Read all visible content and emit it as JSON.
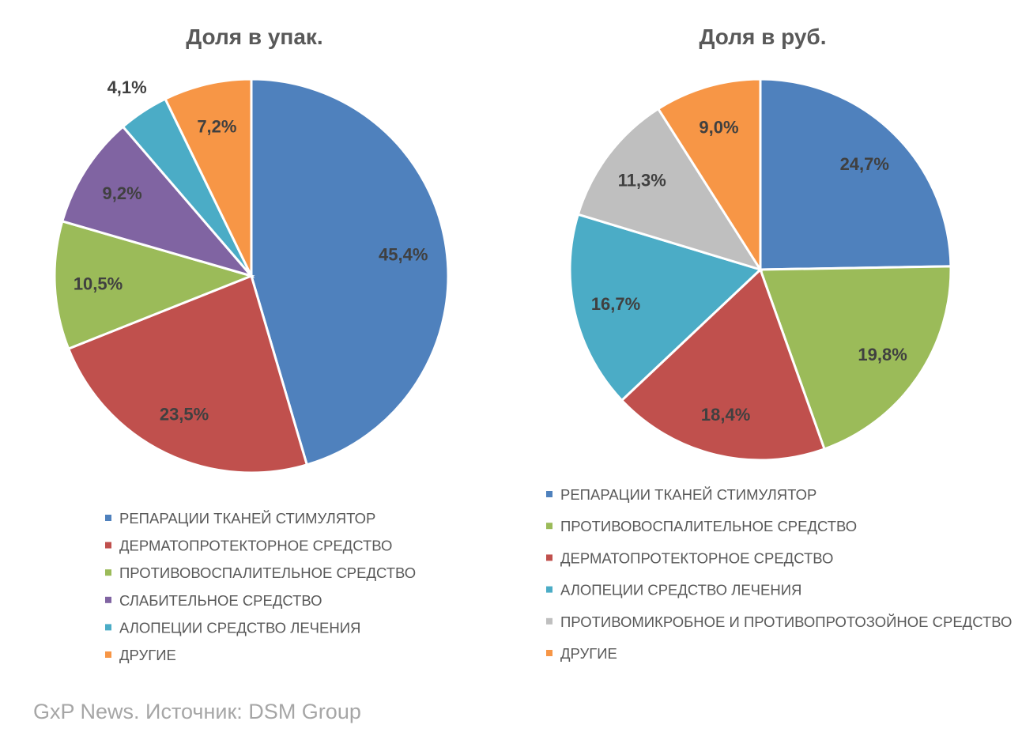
{
  "chart_data": [
    {
      "type": "pie",
      "title": "Доля в упак.",
      "categories": [
        "РЕПАРАЦИИ ТКАНЕЙ СТИМУЛЯТОР",
        "ДЕРМАТОПРОТЕКТОРНОЕ СРЕДСТВО",
        "ПРОТИВОВОСПАЛИТЕЛЬНОЕ СРЕДСТВО",
        "СЛАБИТЕЛЬНОЕ СРЕДСТВО",
        "АЛОПЕЦИИ СРЕДСТВО ЛЕЧЕНИЯ",
        "ДРУГИЕ"
      ],
      "values": [
        45.4,
        23.5,
        10.5,
        9.2,
        4.1,
        7.2
      ],
      "labels": [
        "45,4%",
        "23,5%",
        "10,5%",
        "9,2%",
        "4,1%",
        "7,2%"
      ],
      "colors": [
        "#4F81BD",
        "#C0504D",
        "#9BBB59",
        "#8064A2",
        "#4BACC6",
        "#F79646"
      ],
      "legend": "bottom"
    },
    {
      "type": "pie",
      "title": "Доля в руб.",
      "categories": [
        "РЕПАРАЦИИ ТКАНЕЙ СТИМУЛЯТОР",
        "ПРОТИВОВОСПАЛИТЕЛЬНОЕ СРЕДСТВО",
        "ДЕРМАТОПРОТЕКТОРНОЕ СРЕДСТВО",
        "АЛОПЕЦИИ СРЕДСТВО ЛЕЧЕНИЯ",
        "ПРОТИВОМИКРОБНОЕ И ПРОТИВОПРОТОЗОЙНОЕ СРЕДСТВО",
        "ДРУГИЕ"
      ],
      "values": [
        24.7,
        19.8,
        18.4,
        16.7,
        11.3,
        9.0
      ],
      "labels": [
        "24,7%",
        "19,8%",
        "18,4%",
        "16,7%",
        "11,3%",
        "9,0%"
      ],
      "colors": [
        "#4F81BD",
        "#9BBB59",
        "#C0504D",
        "#4BACC6",
        "#BFBFBF",
        "#F79646"
      ],
      "legend": "bottom"
    }
  ],
  "footer": "GxP News. Источник: DSM Group"
}
